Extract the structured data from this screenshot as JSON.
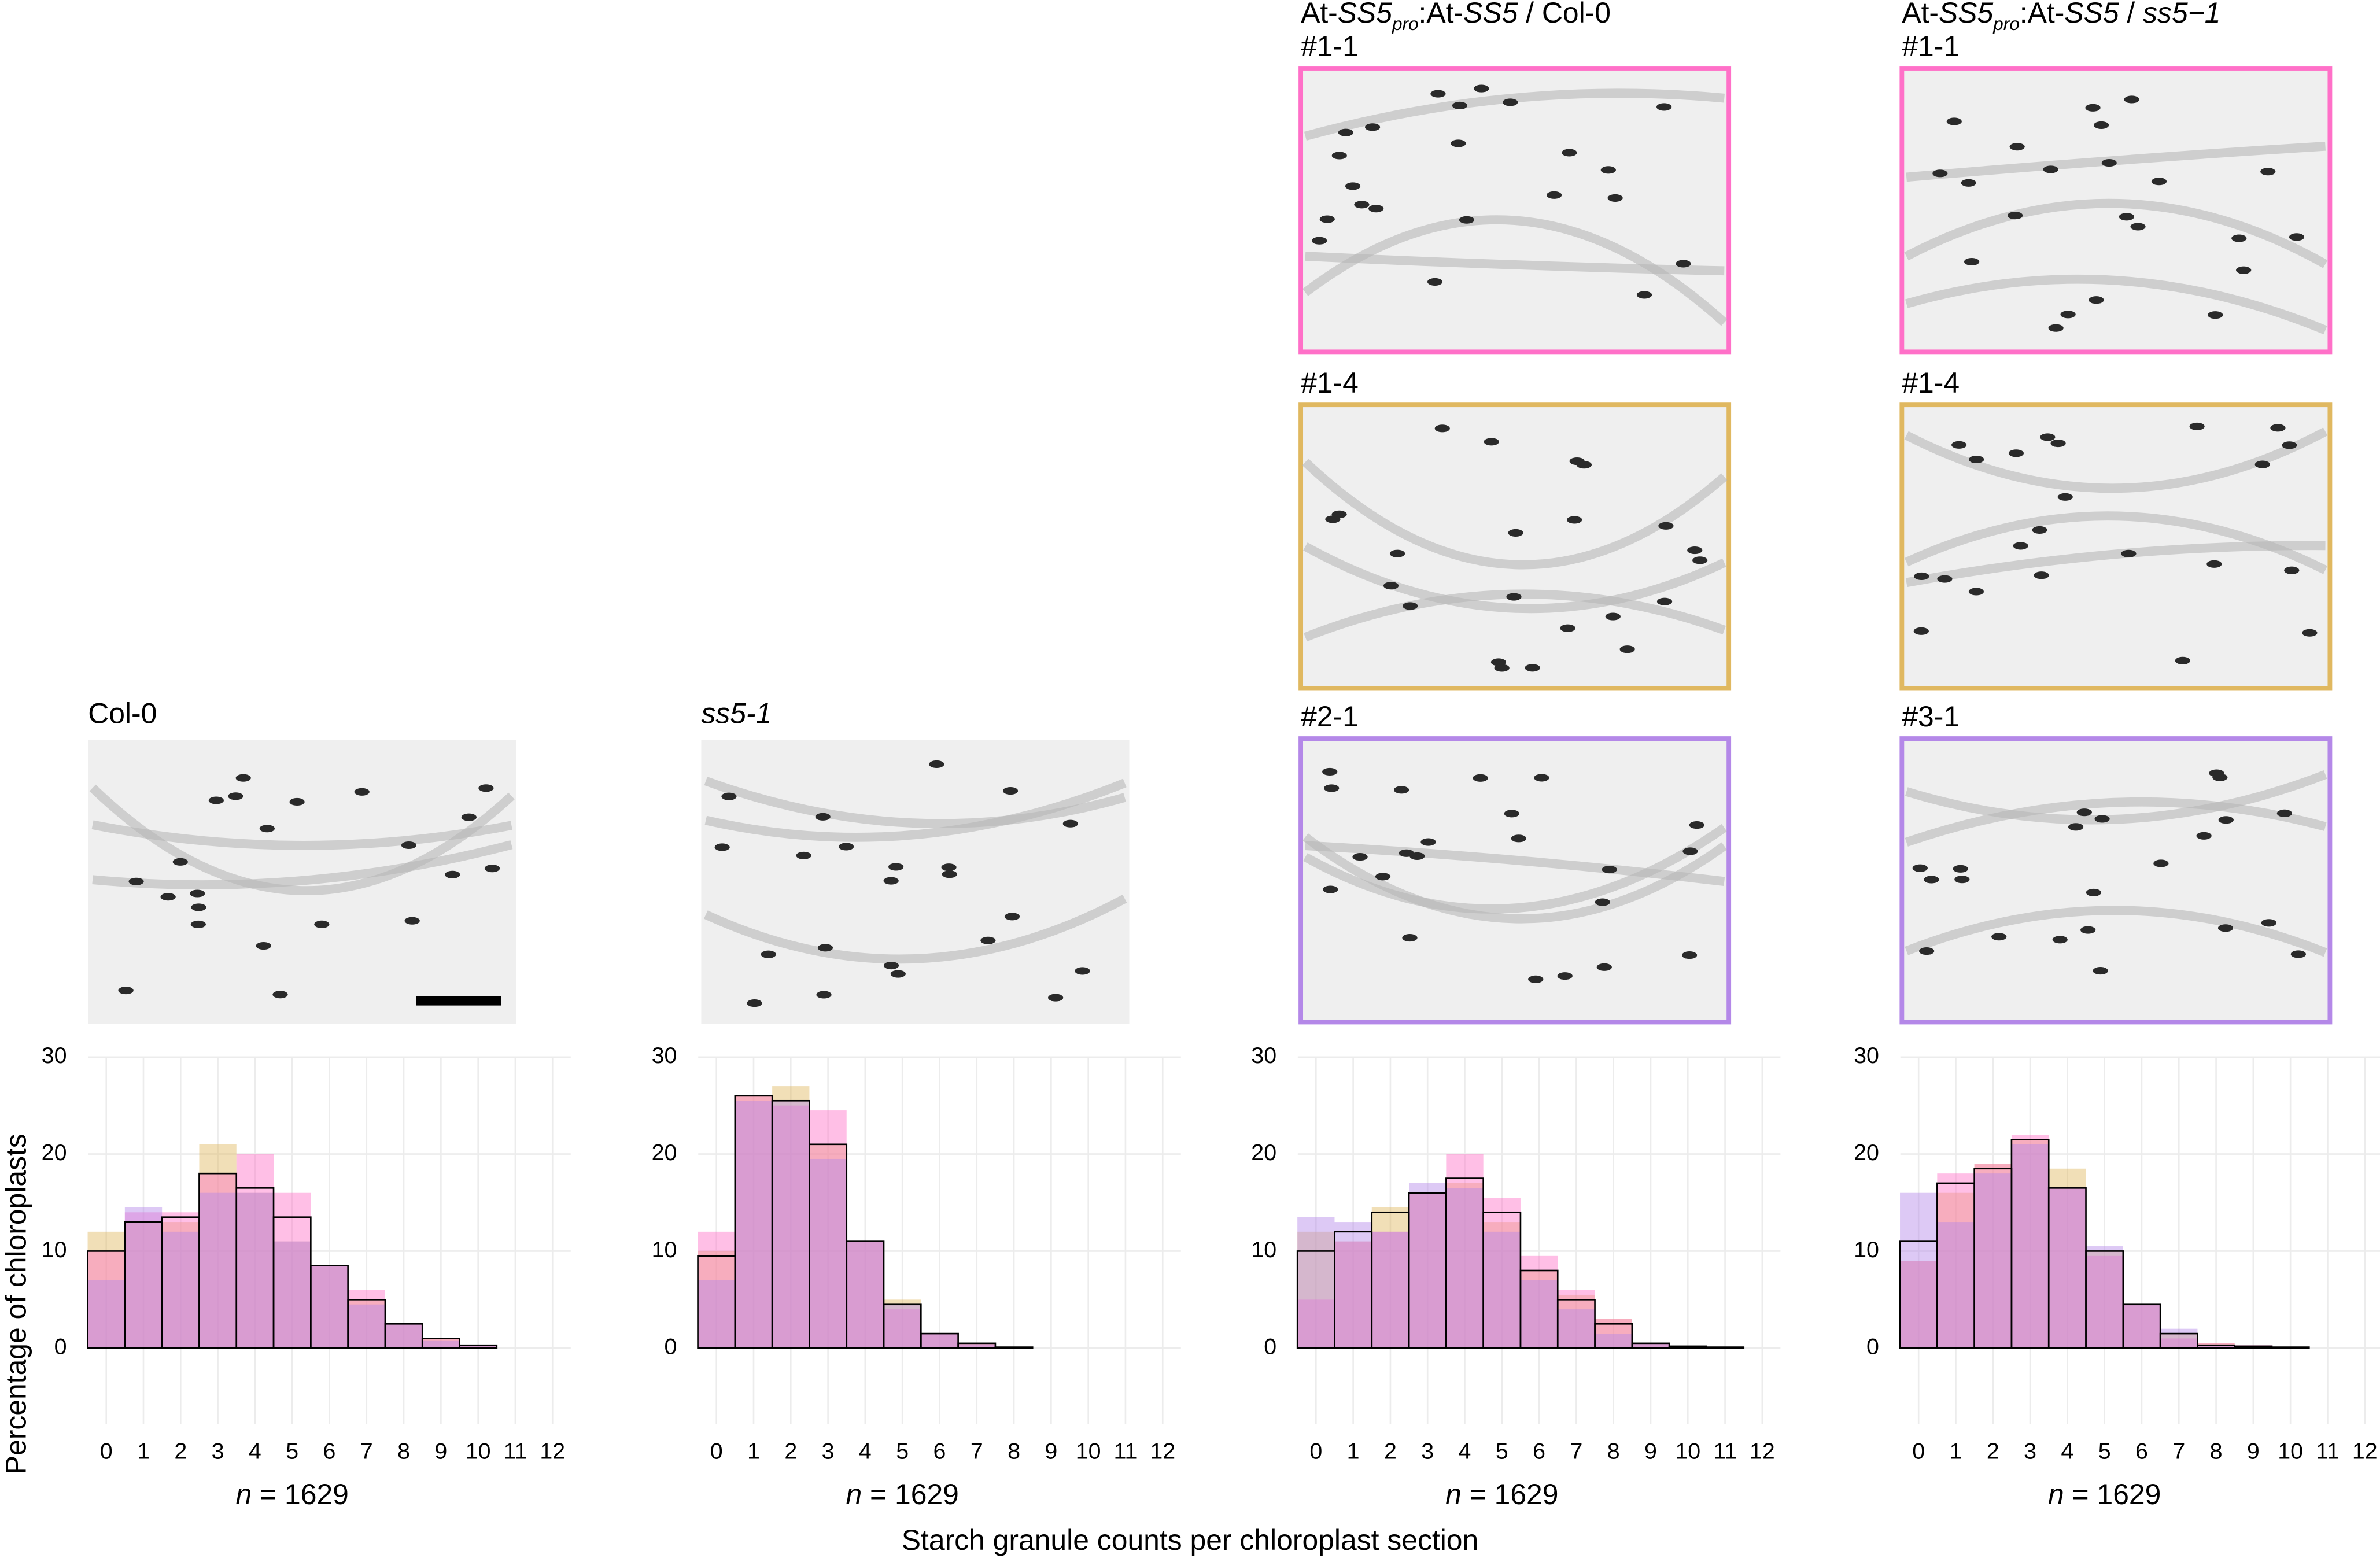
{
  "figure": {
    "x_label": "Starch granule counts per chloroplast section",
    "y_label": "Percentage of chloroplasts"
  },
  "chart_data": [
    {
      "type": "bar",
      "title": [
        {
          "text": "Col-0"
        }
      ],
      "images": [
        {
          "label": null,
          "color": null
        }
      ],
      "annotation": [
        {
          "text": "n",
          "style": "italic"
        },
        {
          "text": " = 1629"
        }
      ],
      "categories": [
        "0",
        "1",
        "2",
        "3",
        "4",
        "5",
        "6",
        "7",
        "8",
        "9",
        "10",
        "11",
        "12"
      ],
      "ylim": [
        0,
        30
      ],
      "yticks": [
        0,
        10,
        20,
        30
      ],
      "grid": true,
      "series": [
        {
          "color": "#e0b860",
          "values": [
            12,
            13,
            13,
            21,
            16,
            11,
            8.5,
            5,
            2.5,
            1,
            0.3,
            null,
            null
          ]
        },
        {
          "color": "#ff70c8",
          "values": [
            10,
            14,
            14,
            18,
            20,
            16,
            8.5,
            6,
            2.5,
            1,
            0.3,
            null,
            null
          ]
        },
        {
          "color": "#b488e8",
          "values": [
            7,
            14.5,
            12,
            16,
            16,
            11,
            8.5,
            4.5,
            2.5,
            0.8,
            0.3,
            null,
            null
          ]
        },
        {
          "color": "#000000",
          "outline": true,
          "values": [
            10,
            13,
            13.5,
            18,
            16.5,
            13.5,
            8.5,
            5,
            2.5,
            1,
            0.3,
            null,
            null
          ]
        }
      ]
    },
    {
      "type": "bar",
      "title": [
        {
          "text": "ss5-1",
          "style": "italic"
        }
      ],
      "images": [
        {
          "label": null,
          "color": null
        }
      ],
      "annotation": [
        {
          "text": "n",
          "style": "italic"
        },
        {
          "text": " = 1629"
        }
      ],
      "categories": [
        "0",
        "1",
        "2",
        "3",
        "4",
        "5",
        "6",
        "7",
        "8",
        "9",
        "10",
        "11",
        "12"
      ],
      "ylim": [
        0,
        30
      ],
      "yticks": [
        0,
        10,
        20,
        30
      ],
      "grid": true,
      "series": [
        {
          "color": "#e0b860",
          "values": [
            10,
            26,
            27,
            21,
            11,
            5,
            1.5,
            0.5,
            0.1,
            null,
            null,
            null,
            null
          ]
        },
        {
          "color": "#ff70c8",
          "values": [
            12,
            26,
            25,
            24.5,
            11,
            4,
            1.5,
            0.5,
            0.1,
            null,
            null,
            null,
            null
          ]
        },
        {
          "color": "#b488e8",
          "values": [
            7,
            25.5,
            25.5,
            19.5,
            11,
            4.5,
            1.5,
            0.4,
            0.1,
            null,
            null,
            null,
            null
          ]
        },
        {
          "color": "#000000",
          "outline": true,
          "values": [
            9.5,
            26,
            25.5,
            21,
            11,
            4.5,
            1.5,
            0.5,
            0.1,
            null,
            null,
            null,
            null
          ]
        }
      ]
    },
    {
      "type": "bar",
      "title": [
        {
          "text": "At-"
        },
        {
          "text": "SS5",
          "style": "italic"
        },
        {
          "text": "pro",
          "style": "italic sub"
        },
        {
          "text": ":At-"
        },
        {
          "text": "SS5",
          "style": "italic"
        },
        {
          "text": " / Col-0"
        }
      ],
      "images": [
        {
          "label": "#1-1",
          "color": "#ff70c8"
        },
        {
          "label": "#1-4",
          "color": "#e0b860"
        },
        {
          "label": "#2-1",
          "color": "#b488e8"
        }
      ],
      "annotation": [
        {
          "text": "n",
          "style": "italic"
        },
        {
          "text": " = 1629"
        }
      ],
      "categories": [
        "0",
        "1",
        "2",
        "3",
        "4",
        "5",
        "6",
        "7",
        "8",
        "9",
        "10",
        "11",
        "12"
      ],
      "ylim": [
        0,
        30
      ],
      "yticks": [
        0,
        10,
        20,
        30
      ],
      "grid": true,
      "series": [
        {
          "color": "#e0b860",
          "values": [
            12,
            11,
            14.5,
            16,
            17,
            13,
            8,
            5.5,
            3,
            0.5,
            0.2,
            0.1,
            null
          ]
        },
        {
          "color": "#ff70c8",
          "values": [
            5,
            11,
            12,
            16,
            20,
            15.5,
            9.5,
            6,
            3,
            0.5,
            0.2,
            0.1,
            null
          ]
        },
        {
          "color": "#b488e8",
          "values": [
            13.5,
            13,
            12,
            17,
            16.5,
            12,
            7,
            4,
            1.5,
            0.5,
            0.2,
            0.1,
            null
          ]
        },
        {
          "color": "#000000",
          "outline": true,
          "values": [
            10,
            12,
            14,
            16,
            17.5,
            14,
            8,
            5,
            2.5,
            0.5,
            0.2,
            0.1,
            null
          ]
        }
      ]
    },
    {
      "type": "bar",
      "title": [
        {
          "text": "At-"
        },
        {
          "text": "SS5",
          "style": "italic"
        },
        {
          "text": "pro",
          "style": "italic sub"
        },
        {
          "text": ":At-"
        },
        {
          "text": "SS5",
          "style": "italic"
        },
        {
          "text": " / "
        },
        {
          "text": "ss5−1",
          "style": "italic"
        }
      ],
      "images": [
        {
          "label": "#1-1",
          "color": "#ff70c8"
        },
        {
          "label": "#1-4",
          "color": "#e0b860"
        },
        {
          "label": "#3-1",
          "color": "#b488e8"
        }
      ],
      "annotation": [
        {
          "text": "n",
          "style": "italic"
        },
        {
          "text": " = 1629"
        }
      ],
      "categories": [
        "0",
        "1",
        "2",
        "3",
        "4",
        "5",
        "6",
        "7",
        "8",
        "9",
        "10",
        "11",
        "12"
      ],
      "ylim": [
        0,
        30
      ],
      "yticks": [
        0,
        10,
        20,
        30
      ],
      "grid": true,
      "series": [
        {
          "color": "#e0b860",
          "values": [
            9,
            16,
            19,
            21.5,
            18.5,
            10,
            4.5,
            1.5,
            0.5,
            0.2,
            0.1,
            null,
            null
          ]
        },
        {
          "color": "#ff70c8",
          "values": [
            9,
            18,
            19,
            22,
            16.5,
            9.5,
            4.5,
            1,
            0.5,
            0.3,
            0.1,
            null,
            null
          ]
        },
        {
          "color": "#b488e8",
          "values": [
            16,
            13,
            18,
            21,
            16.5,
            10.5,
            4.5,
            2,
            0.3,
            0.2,
            0.1,
            null,
            null
          ]
        },
        {
          "color": "#000000",
          "outline": true,
          "values": [
            11,
            17,
            18.5,
            21.5,
            16.5,
            10,
            4.5,
            1.5,
            0.3,
            0.2,
            0.1,
            null,
            null
          ]
        }
      ]
    }
  ]
}
